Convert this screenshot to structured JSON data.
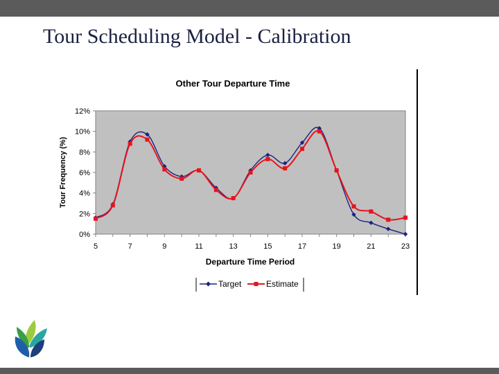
{
  "slide": {
    "title": "Tour Scheduling Model - Calibration"
  },
  "colors": {
    "target": "#1a237e",
    "estimate": "#e8141b",
    "plot_background": "#c0c0c0",
    "bars": "#5b5b5b"
  },
  "logo": {
    "icon": "leaf-logo-icon"
  },
  "chart_data": {
    "type": "line",
    "title": "Other Tour Departure Time",
    "xlabel": "Departure Time Period",
    "ylabel": "Tour Frequency (%)",
    "x": [
      5,
      6,
      7,
      8,
      9,
      10,
      11,
      12,
      13,
      14,
      15,
      16,
      17,
      18,
      19,
      20,
      21,
      22,
      23
    ],
    "xticks": [
      5,
      7,
      9,
      11,
      13,
      15,
      17,
      19,
      21,
      23
    ],
    "xtick_labels": [
      "5",
      "7",
      "9",
      "11",
      "13",
      "15",
      "17",
      "19",
      "21",
      "23"
    ],
    "xlim": [
      5,
      23
    ],
    "ylim": [
      0,
      12
    ],
    "yticks": [
      0,
      2,
      4,
      6,
      8,
      10,
      12
    ],
    "ytick_labels": [
      "0%",
      "2%",
      "4%",
      "6%",
      "8%",
      "10%",
      "12%"
    ],
    "grid": false,
    "legend_position": "bottom",
    "series": [
      {
        "name": "Target",
        "marker": "diamond",
        "values": [
          1.6,
          2.9,
          9.0,
          9.7,
          6.6,
          5.6,
          6.2,
          4.5,
          3.5,
          6.2,
          7.7,
          6.9,
          8.9,
          10.3,
          6.2,
          1.9,
          1.1,
          0.5,
          0.0
        ]
      },
      {
        "name": "Estimate",
        "marker": "square",
        "values": [
          1.5,
          2.8,
          8.8,
          9.2,
          6.3,
          5.4,
          6.2,
          4.3,
          3.5,
          6.0,
          7.3,
          6.4,
          8.3,
          10.0,
          6.2,
          2.7,
          2.2,
          1.4,
          1.6
        ]
      }
    ]
  }
}
